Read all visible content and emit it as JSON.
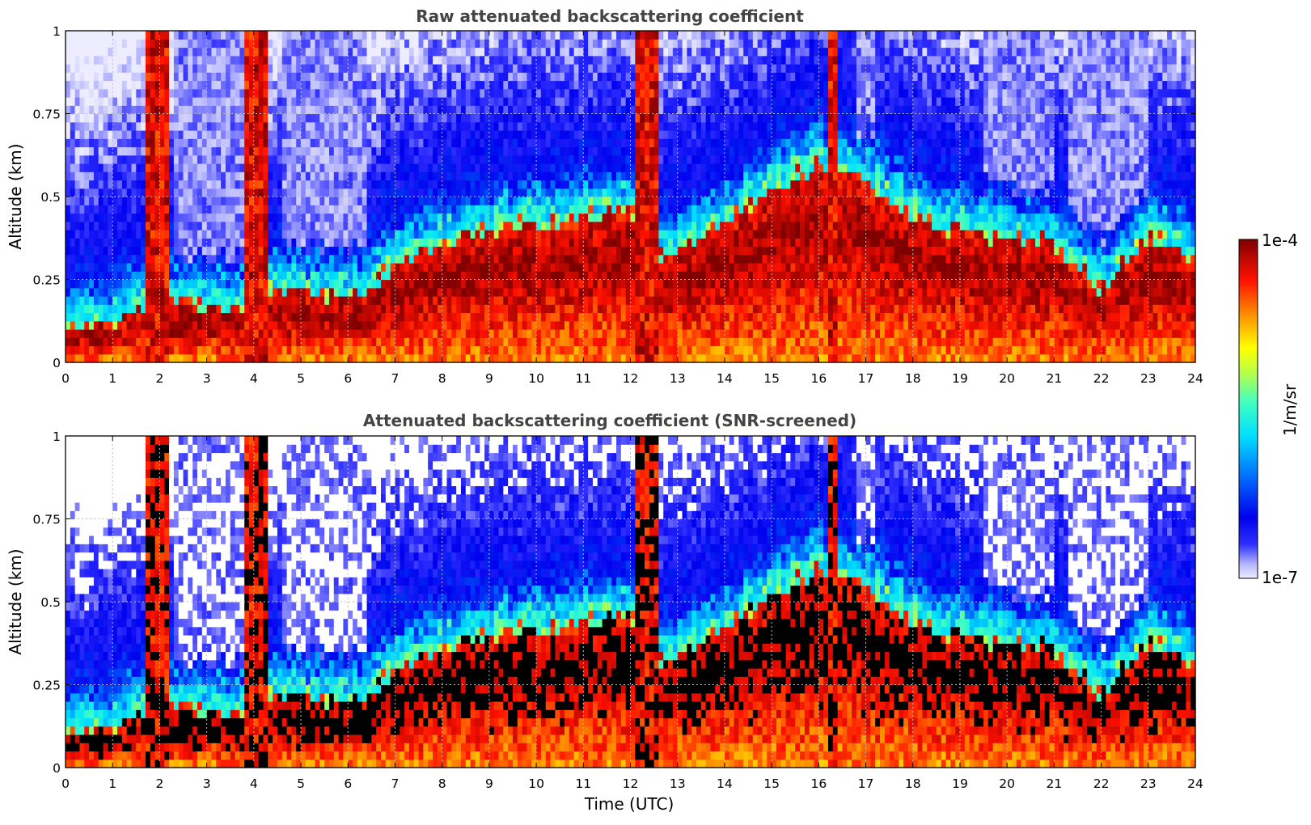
{
  "chart_data": [
    {
      "type": "heatmap",
      "title": "Raw attenuated backscattering coefficient",
      "xlabel": "",
      "ylabel": "Altitude (km)",
      "xlim": [
        0,
        24
      ],
      "ylim": [
        0,
        1
      ],
      "x_ticks": [
        "0",
        "1",
        "2",
        "3",
        "4",
        "5",
        "6",
        "7",
        "8",
        "9",
        "10",
        "11",
        "12",
        "13",
        "14",
        "15",
        "16",
        "17",
        "18",
        "19",
        "20",
        "21",
        "22",
        "23",
        "24"
      ],
      "y_ticks": [
        "0",
        "0.25",
        "0.5",
        "0.75",
        "1"
      ],
      "grid": true,
      "screened": false,
      "layer_top_km": [
        {
          "t": 0,
          "top": 0.1
        },
        {
          "t": 1,
          "top": 0.12
        },
        {
          "t": 1.6,
          "top": 0.18
        },
        {
          "t": 2.3,
          "top": 0.18
        },
        {
          "t": 3.0,
          "top": 0.17
        },
        {
          "t": 3.8,
          "top": 0.17
        },
        {
          "t": 4.5,
          "top": 0.22
        },
        {
          "t": 5.5,
          "top": 0.2
        },
        {
          "t": 6.3,
          "top": 0.2
        },
        {
          "t": 7.0,
          "top": 0.3
        },
        {
          "t": 8.0,
          "top": 0.36
        },
        {
          "t": 9.0,
          "top": 0.4
        },
        {
          "t": 10.0,
          "top": 0.42
        },
        {
          "t": 11.0,
          "top": 0.44
        },
        {
          "t": 12.0,
          "top": 0.46
        },
        {
          "t": 12.5,
          "top": 0.3
        },
        {
          "t": 16.0,
          "top": 0.6
        },
        {
          "t": 17.0,
          "top": 0.55
        },
        {
          "t": 18.0,
          "top": 0.45
        },
        {
          "t": 19.0,
          "top": 0.4
        },
        {
          "t": 20.0,
          "top": 0.38
        },
        {
          "t": 21.0,
          "top": 0.36
        },
        {
          "t": 22.0,
          "top": 0.22
        },
        {
          "t": 23.0,
          "top": 0.38
        },
        {
          "t": 24.0,
          "top": 0.32
        }
      ]
    },
    {
      "type": "heatmap",
      "title": "Attenuated backscattering coefficient (SNR-screened)",
      "xlabel": "Time (UTC)",
      "ylabel": "Altitude (km)",
      "xlim": [
        0,
        24
      ],
      "ylim": [
        0,
        1
      ],
      "x_ticks": [
        "0",
        "1",
        "2",
        "3",
        "4",
        "5",
        "6",
        "7",
        "8",
        "9",
        "10",
        "11",
        "12",
        "13",
        "14",
        "15",
        "16",
        "17",
        "18",
        "19",
        "20",
        "21",
        "22",
        "23",
        "24"
      ],
      "y_ticks": [
        "0",
        "0.25",
        "0.5",
        "0.75",
        "1"
      ],
      "grid": true,
      "screened": true,
      "layer_top_km": [
        {
          "t": 0,
          "top": 0.1
        },
        {
          "t": 1,
          "top": 0.12
        },
        {
          "t": 1.6,
          "top": 0.18
        },
        {
          "t": 2.3,
          "top": 0.18
        },
        {
          "t": 3.0,
          "top": 0.17
        },
        {
          "t": 3.8,
          "top": 0.17
        },
        {
          "t": 4.5,
          "top": 0.22
        },
        {
          "t": 5.5,
          "top": 0.2
        },
        {
          "t": 6.3,
          "top": 0.2
        },
        {
          "t": 7.0,
          "top": 0.3
        },
        {
          "t": 8.0,
          "top": 0.36
        },
        {
          "t": 9.0,
          "top": 0.4
        },
        {
          "t": 10.0,
          "top": 0.42
        },
        {
          "t": 11.0,
          "top": 0.44
        },
        {
          "t": 12.0,
          "top": 0.46
        },
        {
          "t": 12.5,
          "top": 0.3
        },
        {
          "t": 16.0,
          "top": 0.6
        },
        {
          "t": 17.0,
          "top": 0.55
        },
        {
          "t": 18.0,
          "top": 0.45
        },
        {
          "t": 19.0,
          "top": 0.4
        },
        {
          "t": 20.0,
          "top": 0.38
        },
        {
          "t": 21.0,
          "top": 0.36
        },
        {
          "t": 22.0,
          "top": 0.22
        },
        {
          "t": 23.0,
          "top": 0.38
        },
        {
          "t": 24.0,
          "top": 0.32
        }
      ]
    }
  ],
  "colorbar": {
    "label": "1/m/sr",
    "max_label": "1e-4",
    "min_label": "1e-7",
    "min_value": 1e-07,
    "max_value": 0.0001,
    "scale": "log",
    "colormap": "jet"
  },
  "colors": {
    "dark_red": "#800000",
    "red": "#ff1000",
    "orange": "#ff8c00",
    "yellow": "#ffff00",
    "cyan": "#00e5ff",
    "blue": "#0020ff",
    "pale": "#e6e6ff",
    "screened_max": "#000000"
  }
}
